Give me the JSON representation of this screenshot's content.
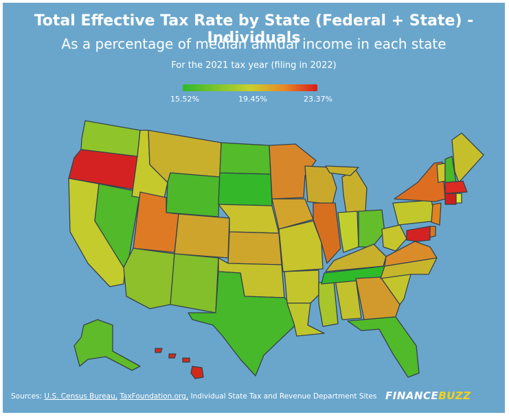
{
  "title": "Total Effective Tax Rate by State (Federal + State) - Individuals",
  "subtitle": "As a percentage of median annual income in each state",
  "tax_year": "For the 2021 tax year (filing in 2022)",
  "legend": {
    "min": "15.52%",
    "mid": "19.45%",
    "max": "23.37%"
  },
  "colors": {
    "background": "#6aa6cc",
    "low": "#2fba2a",
    "mid": "#c8d02c",
    "high": "#d91c1c"
  },
  "footer": {
    "prefix": "Sources: ",
    "source1": "U.S. Census Bureau,",
    "source2": "TaxFoundation.org,",
    "suffix": " Individual State Tax and Revenue Department Sites"
  },
  "brand": {
    "part1": "FINANCE",
    "part2": "BUZZ"
  }
}
